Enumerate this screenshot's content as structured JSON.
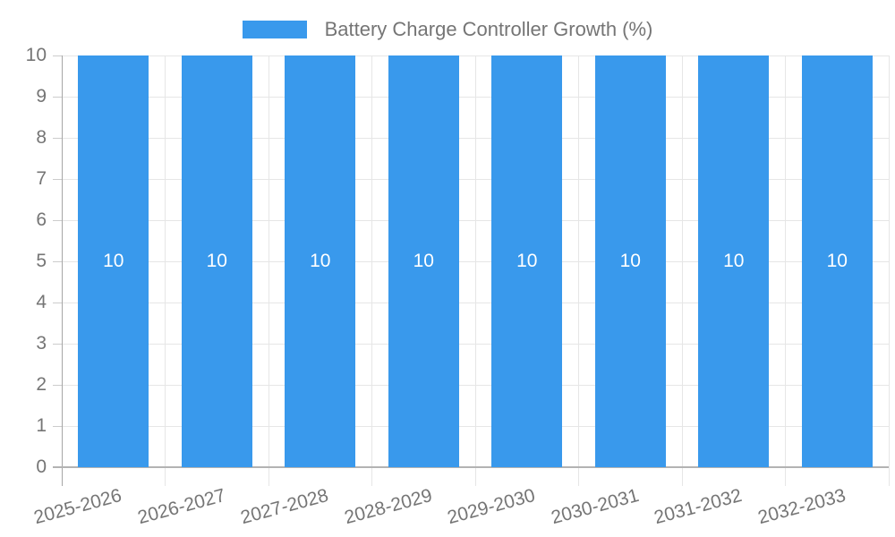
{
  "chart_data": {
    "type": "bar",
    "title": "Battery Charge Controller Growth (%)",
    "categories": [
      "2025-2026",
      "2026-2027",
      "2027-2028",
      "2028-2029",
      "2029-2030",
      "2030-2031",
      "2031-2032",
      "2032-2033"
    ],
    "series": [
      {
        "name": "Battery Charge Controller Growth (%)",
        "values": [
          10,
          10,
          10,
          10,
          10,
          10,
          10,
          10
        ]
      }
    ],
    "bar_value_labels": [
      "10",
      "10",
      "10",
      "10",
      "10",
      "10",
      "10",
      "10"
    ],
    "xlabel": "",
    "ylabel": "",
    "ylim": [
      0,
      10
    ],
    "yticks": [
      0,
      1,
      2,
      3,
      4,
      5,
      6,
      7,
      8,
      9,
      10
    ],
    "grid": true,
    "legend_position": "top-center",
    "colors": {
      "bar": "#3999ec",
      "bar_label": "#ffffff",
      "axis_text": "#757575",
      "gridline": "#e6e6e6",
      "axis_line": "#b3b3b3",
      "y_axis_line": "#a6a6a6",
      "tick": "#cccccc",
      "background": "#ffffff"
    }
  }
}
